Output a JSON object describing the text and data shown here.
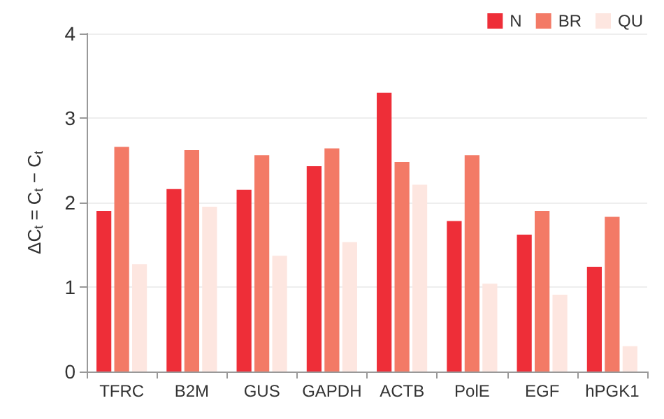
{
  "chart_data": {
    "type": "bar",
    "ylabel": "ΔC$_{t}$ = C$_{t}$ − C$_{t}$",
    "categories": [
      "TFRC",
      "B2M",
      "GUS",
      "GAPDH",
      "ACTB",
      "PolE",
      "EGF",
      "hPGK1"
    ],
    "series": [
      {
        "name": "N",
        "color": "#ee2e38",
        "values": [
          1.9,
          2.16,
          2.15,
          2.43,
          3.3,
          1.78,
          1.62,
          1.24
        ]
      },
      {
        "name": "BR",
        "color": "#f37a66",
        "values": [
          2.66,
          2.62,
          2.56,
          2.64,
          2.48,
          2.56,
          1.9,
          1.83
        ]
      },
      {
        "name": "QU",
        "color": "#fde6e0",
        "values": [
          1.27,
          1.95,
          1.37,
          1.53,
          2.21,
          1.04,
          0.91,
          0.3
        ]
      }
    ],
    "ylim": [
      0,
      4
    ],
    "yticks": [
      0,
      1,
      2,
      3,
      4
    ],
    "grid": "y",
    "legend": "top right"
  }
}
